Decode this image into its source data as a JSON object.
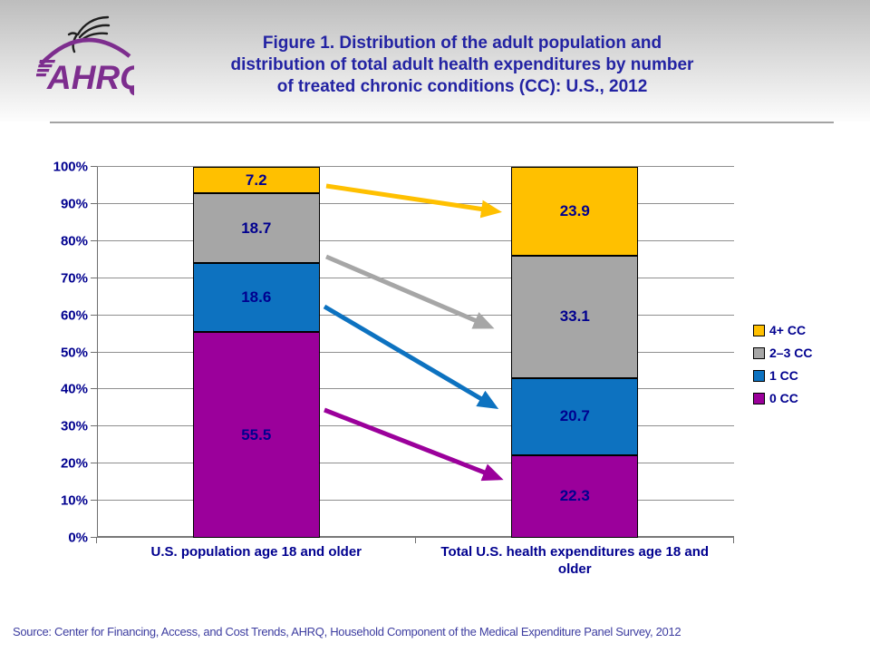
{
  "slide": {
    "logo_text": "AHRQ",
    "logo_color": "#7d2d8e",
    "source": "Source: Center for Financing, Access, and Cost Trends, AHRQ, Household Component of the Medical Expenditure Panel Survey, 2012"
  },
  "chart_data": {
    "type": "bar",
    "subtype": "stacked-100-percent",
    "title": "Figure 1. Distribution of the adult population and\ndistribution of total adult health expenditures by number\nof treated chronic conditions (CC): U.S., 2012",
    "categories": [
      "U.S. population age 18 and older",
      "Total U.S. health expenditures age 18 and\nolder"
    ],
    "series": [
      {
        "name": "0 CC",
        "color": "#9b009b",
        "values": [
          55.5,
          22.3
        ]
      },
      {
        "name": "1 CC",
        "color": "#0d72c0",
        "values": [
          18.6,
          20.7
        ]
      },
      {
        "name": "2–3 CC",
        "color": "#a6a6a6",
        "values": [
          18.7,
          33.1
        ]
      },
      {
        "name": "4+ CC",
        "color": "#ffc000",
        "values": [
          7.2,
          23.9
        ]
      }
    ],
    "stack_order_bottom_to_top": [
      "0 CC",
      "1 CC",
      "2–3 CC",
      "4+ CC"
    ],
    "legend_order_top_to_bottom": [
      "4+ CC",
      "2–3 CC",
      "1 CC",
      "0 CC"
    ],
    "yticks": [
      "0%",
      "10%",
      "20%",
      "30%",
      "40%",
      "50%",
      "60%",
      "70%",
      "80%",
      "90%",
      "100%"
    ],
    "ylim": [
      0,
      100
    ],
    "grid": true,
    "legend_position": "right",
    "annotations": "colored arrows point from each population segment in the left bar to the matching expenditure segment in the right bar",
    "value_label_color": "#00008f",
    "axis_label_color": "#00008f",
    "title_color": "#2323a3"
  }
}
